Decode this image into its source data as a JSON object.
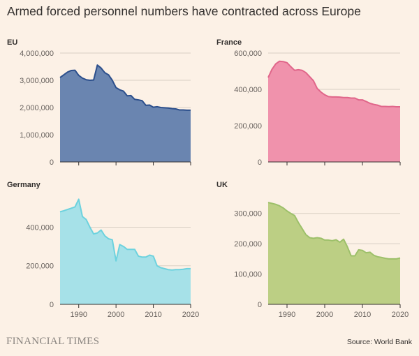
{
  "title": "Armed forced personnel numbers have contracted across Europe",
  "brand": "FINANCIAL TIMES",
  "source": "Source: World Bank",
  "chart_data": [
    {
      "type": "area",
      "title": "EU",
      "color": "#6a85b0",
      "line_color": "#2c4f8c",
      "ylim": [
        0,
        4000000
      ],
      "yticks": [
        0,
        1000000,
        2000000,
        3000000,
        4000000
      ],
      "ytick_labels": [
        "0",
        "1,000,000",
        "2,000,000",
        "3,000,000",
        "4,000,000"
      ],
      "xlim": [
        1985,
        2020
      ],
      "xticks": [
        1990,
        2000,
        2010,
        2020
      ],
      "xtick_labels": [],
      "x": [
        1985,
        1986,
        1987,
        1988,
        1989,
        1990,
        1991,
        1992,
        1993,
        1994,
        1995,
        1996,
        1997,
        1998,
        1999,
        2000,
        2001,
        2002,
        2003,
        2004,
        2005,
        2006,
        2007,
        2008,
        2009,
        2010,
        2011,
        2012,
        2013,
        2014,
        2015,
        2016,
        2017,
        2018,
        2019,
        2020
      ],
      "values": [
        3100000,
        3200000,
        3300000,
        3360000,
        3370000,
        3180000,
        3080000,
        3020000,
        3000000,
        3010000,
        3560000,
        3450000,
        3280000,
        3200000,
        3000000,
        2730000,
        2650000,
        2600000,
        2430000,
        2440000,
        2300000,
        2280000,
        2250000,
        2080000,
        2090000,
        2010000,
        2030000,
        2000000,
        1990000,
        1980000,
        1960000,
        1950000,
        1910000,
        1910000,
        1900000,
        1900000
      ]
    },
    {
      "type": "area",
      "title": "France",
      "color": "#f092ac",
      "line_color": "#e0668a",
      "ylim": [
        0,
        600000
      ],
      "yticks": [
        0,
        200000,
        400000,
        600000
      ],
      "ytick_labels": [
        "0",
        "200,000",
        "400,000",
        "600,000"
      ],
      "xlim": [
        1985,
        2020
      ],
      "xticks": [
        1990,
        2000,
        2010,
        2020
      ],
      "xtick_labels": [],
      "x": [
        1985,
        1986,
        1987,
        1988,
        1989,
        1990,
        1991,
        1992,
        1993,
        1994,
        1995,
        1996,
        1997,
        1998,
        1999,
        2000,
        2001,
        2002,
        2003,
        2004,
        2005,
        2006,
        2007,
        2008,
        2009,
        2010,
        2011,
        2012,
        2013,
        2014,
        2015,
        2016,
        2017,
        2018,
        2019,
        2020
      ],
      "values": [
        465000,
        510000,
        540000,
        555000,
        553000,
        547000,
        525000,
        505000,
        508000,
        505000,
        492000,
        470000,
        448000,
        405000,
        385000,
        370000,
        360000,
        358000,
        358000,
        357000,
        355000,
        355000,
        352000,
        352000,
        342000,
        342000,
        333000,
        323000,
        317000,
        313000,
        306000,
        306000,
        305000,
        306000,
        304000,
        304000
      ]
    },
    {
      "type": "area",
      "title": "Germany",
      "color": "#a6e1e8",
      "line_color": "#6dd2de",
      "ylim": [
        0,
        550000
      ],
      "yticks": [
        0,
        200000,
        400000
      ],
      "ytick_labels": [
        "0",
        "200,000",
        "400,000"
      ],
      "xlim": [
        1985,
        2020
      ],
      "xticks": [
        1990,
        2000,
        2010,
        2020
      ],
      "xtick_labels": [
        "1990",
        "2000",
        "2010",
        "2020"
      ],
      "x": [
        1985,
        1986,
        1987,
        1988,
        1989,
        1990,
        1991,
        1992,
        1993,
        1994,
        1995,
        1996,
        1997,
        1998,
        1999,
        2000,
        2001,
        2002,
        2003,
        2004,
        2005,
        2006,
        2007,
        2008,
        2009,
        2010,
        2011,
        2012,
        2013,
        2014,
        2015,
        2016,
        2017,
        2018,
        2019,
        2020
      ],
      "values": [
        480000,
        485000,
        492000,
        498000,
        505000,
        545000,
        455000,
        440000,
        400000,
        365000,
        370000,
        385000,
        355000,
        340000,
        335000,
        225000,
        310000,
        300000,
        285000,
        285000,
        285000,
        250000,
        245000,
        245000,
        255000,
        250000,
        200000,
        190000,
        185000,
        180000,
        178000,
        180000,
        180000,
        182000,
        185000,
        185000
      ]
    },
    {
      "type": "area",
      "title": "UK",
      "color": "#bccf84",
      "line_color": "#9dc06a",
      "ylim": [
        0,
        350000
      ],
      "yticks": [
        0,
        100000,
        200000,
        300000
      ],
      "ytick_labels": [
        "0",
        "100,000",
        "200,000",
        "300,000"
      ],
      "xlim": [
        1985,
        2020
      ],
      "xticks": [
        1990,
        2000,
        2010,
        2020
      ],
      "xtick_labels": [
        "1990",
        "2000",
        "2010",
        "2020"
      ],
      "x": [
        1985,
        1986,
        1987,
        1988,
        1989,
        1990,
        1991,
        1992,
        1993,
        1994,
        1995,
        1996,
        1997,
        1998,
        1999,
        2000,
        2001,
        2002,
        2003,
        2004,
        2005,
        2006,
        2007,
        2008,
        2009,
        2010,
        2011,
        2012,
        2013,
        2014,
        2015,
        2016,
        2017,
        2018,
        2019,
        2020
      ],
      "values": [
        336000,
        333000,
        330000,
        325000,
        318000,
        308000,
        300000,
        293000,
        270000,
        250000,
        230000,
        220000,
        218000,
        220000,
        218000,
        212000,
        212000,
        210000,
        213000,
        205000,
        215000,
        190000,
        160000,
        160000,
        180000,
        178000,
        170000,
        172000,
        162000,
        157000,
        155000,
        152000,
        150000,
        150000,
        150000,
        153000
      ]
    }
  ]
}
